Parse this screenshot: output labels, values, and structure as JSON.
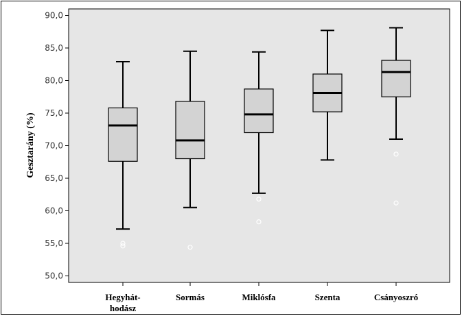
{
  "chart_data": {
    "type": "box",
    "ylabel": "Gesztarány (%)",
    "xlabel": "",
    "ylim": [
      49,
      91
    ],
    "yticks": [
      "50,0",
      "55,0",
      "60,0",
      "65,0",
      "70,0",
      "75,0",
      "80,0",
      "85,0",
      "90,0"
    ],
    "ytick_values": [
      50,
      55,
      60,
      65,
      70,
      75,
      80,
      85,
      90
    ],
    "grid": false,
    "plot_background": "#e6e6e6",
    "box_fill": "#d3d3d3",
    "categories": [
      {
        "label_lines": [
          "Hegyhát-",
          "hodász"
        ]
      },
      {
        "label_lines": [
          "Sormás"
        ]
      },
      {
        "label_lines": [
          "Miklósfa"
        ]
      },
      {
        "label_lines": [
          "Szenta"
        ]
      },
      {
        "label_lines": [
          "Csányoszró"
        ]
      }
    ],
    "boxes": [
      {
        "whisker_low": 57.2,
        "q1": 67.6,
        "median": 73.1,
        "q3": 75.8,
        "whisker_high": 82.9,
        "outliers": [
          54.6,
          55.0
        ]
      },
      {
        "whisker_low": 60.5,
        "q1": 68.0,
        "median": 70.8,
        "q3": 76.8,
        "whisker_high": 84.5,
        "outliers": [
          54.4
        ]
      },
      {
        "whisker_low": 62.7,
        "q1": 72.0,
        "median": 74.8,
        "q3": 78.7,
        "whisker_high": 84.4,
        "outliers": [
          61.8,
          58.3
        ]
      },
      {
        "whisker_low": 67.8,
        "q1": 75.2,
        "median": 78.1,
        "q3": 81.0,
        "whisker_high": 87.7,
        "outliers": []
      },
      {
        "whisker_low": 71.0,
        "q1": 77.5,
        "median": 81.3,
        "q3": 83.1,
        "whisker_high": 88.1,
        "outliers": [
          68.7,
          61.2
        ]
      }
    ]
  }
}
